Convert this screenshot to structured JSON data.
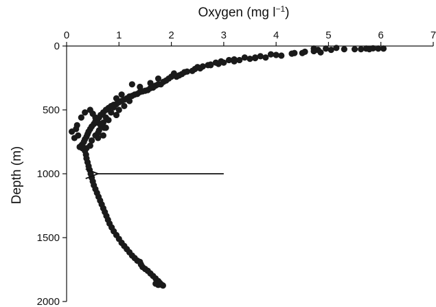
{
  "chart_data": {
    "type": "scatter",
    "title": "",
    "xlabel_main": "Oxygen (mg l",
    "xlabel_sup": "−1",
    "xlabel_close": ")",
    "ylabel": "Depth (m)",
    "xlim": [
      0,
      7
    ],
    "ylim": [
      0,
      2000
    ],
    "y_reversed": true,
    "x_axis_position": "top",
    "x_ticks": [
      "0",
      "1",
      "2",
      "3",
      "4",
      "5",
      "6",
      "7"
    ],
    "y_ticks": [
      "0",
      "500",
      "1000",
      "1500",
      "2000"
    ],
    "grid": false,
    "legend": "none",
    "marker_color": "#1a1a1a",
    "annotation": {
      "type": "arrow",
      "from": {
        "x": 3.0,
        "y": 1000
      },
      "to": {
        "x": 0.6,
        "y": 1000
      }
    },
    "series": [
      {
        "points": [
          [
            6.05,
            20
          ],
          [
            5.95,
            20
          ],
          [
            5.85,
            18
          ],
          [
            5.78,
            25
          ],
          [
            5.72,
            20
          ],
          [
            5.62,
            25
          ],
          [
            5.5,
            25
          ],
          [
            5.3,
            25
          ],
          [
            5.15,
            15
          ],
          [
            5.05,
            30
          ],
          [
            4.95,
            20
          ],
          [
            4.85,
            50
          ],
          [
            4.8,
            30
          ],
          [
            4.72,
            20
          ],
          [
            4.5,
            55
          ],
          [
            4.3,
            60
          ],
          [
            4.1,
            75
          ],
          [
            4.0,
            70
          ],
          [
            3.9,
            65
          ],
          [
            3.8,
            90
          ],
          [
            3.7,
            80
          ],
          [
            3.6,
            95
          ],
          [
            3.5,
            100
          ],
          [
            3.4,
            90
          ],
          [
            3.3,
            110
          ],
          [
            3.2,
            120
          ],
          [
            3.1,
            110
          ],
          [
            3.0,
            130
          ],
          [
            2.95,
            120
          ],
          [
            2.9,
            140
          ],
          [
            2.85,
            130
          ],
          [
            2.75,
            150
          ],
          [
            2.7,
            150
          ],
          [
            2.6,
            160
          ],
          [
            2.55,
            175
          ],
          [
            2.45,
            180
          ],
          [
            2.4,
            195
          ],
          [
            2.3,
            200
          ],
          [
            2.25,
            205
          ],
          [
            2.2,
            220
          ],
          [
            2.15,
            230
          ],
          [
            2.1,
            240
          ],
          [
            2.0,
            240
          ],
          [
            1.95,
            255
          ],
          [
            1.9,
            270
          ],
          [
            1.85,
            280
          ],
          [
            1.8,
            300
          ],
          [
            1.75,
            300
          ],
          [
            1.7,
            310
          ],
          [
            1.65,
            325
          ],
          [
            1.6,
            330
          ],
          [
            1.55,
            345
          ],
          [
            1.5,
            350
          ],
          [
            1.45,
            355
          ],
          [
            1.4,
            360
          ],
          [
            1.35,
            375
          ],
          [
            1.3,
            380
          ],
          [
            1.25,
            390
          ],
          [
            1.2,
            395
          ],
          [
            1.15,
            410
          ],
          [
            1.1,
            420
          ],
          [
            1.05,
            430
          ],
          [
            1.0,
            440
          ],
          [
            0.95,
            455
          ],
          [
            0.9,
            460
          ],
          [
            0.85,
            470
          ],
          [
            0.8,
            485
          ],
          [
            0.75,
            500
          ],
          [
            0.7,
            520
          ],
          [
            0.65,
            540
          ],
          [
            0.62,
            560
          ],
          [
            0.58,
            580
          ],
          [
            0.55,
            590
          ],
          [
            0.52,
            610
          ],
          [
            0.48,
            630
          ],
          [
            0.45,
            650
          ],
          [
            0.42,
            670
          ],
          [
            0.4,
            690
          ],
          [
            0.38,
            710
          ],
          [
            0.35,
            730
          ],
          [
            0.33,
            750
          ],
          [
            0.3,
            770
          ],
          [
            0.28,
            780
          ],
          [
            1.05,
            380
          ],
          [
            0.95,
            410
          ],
          [
            0.9,
            480
          ],
          [
            0.85,
            520
          ],
          [
            0.75,
            560
          ],
          [
            0.7,
            600
          ],
          [
            0.72,
            640
          ],
          [
            0.7,
            700
          ],
          [
            0.6,
            720
          ],
          [
            0.2,
            620
          ],
          [
            0.18,
            650
          ],
          [
            0.1,
            670
          ],
          [
            0.22,
            700
          ],
          [
            0.15,
            720
          ],
          [
            0.28,
            560
          ],
          [
            0.35,
            520
          ],
          [
            0.45,
            500
          ],
          [
            0.5,
            530
          ],
          [
            0.55,
            560
          ],
          [
            0.6,
            600
          ],
          [
            0.65,
            620
          ],
          [
            0.62,
            660
          ],
          [
            0.55,
            700
          ],
          [
            0.48,
            740
          ],
          [
            0.45,
            780
          ],
          [
            0.38,
            800
          ],
          [
            0.3,
            800
          ],
          [
            0.25,
            790
          ],
          [
            1.25,
            300
          ],
          [
            1.4,
            320
          ],
          [
            1.6,
            290
          ],
          [
            1.75,
            255
          ],
          [
            2.05,
            215
          ],
          [
            2.5,
            165
          ],
          [
            2.75,
            145
          ],
          [
            3.2,
            105
          ],
          [
            3.6,
            90
          ],
          [
            4.35,
            55
          ],
          [
            4.55,
            45
          ],
          [
            4.72,
            40
          ],
          [
            1.2,
            430
          ],
          [
            1.1,
            470
          ],
          [
            1.0,
            500
          ],
          [
            0.95,
            540
          ],
          [
            0.8,
            580
          ],
          [
            0.75,
            640
          ],
          [
            0.6,
            680
          ],
          [
            0.35,
            820
          ],
          [
            0.37,
            850
          ],
          [
            0.38,
            880
          ],
          [
            0.4,
            910
          ],
          [
            0.42,
            940
          ],
          [
            0.44,
            970
          ],
          [
            0.46,
            1000
          ],
          [
            0.48,
            1030
          ],
          [
            0.5,
            1060
          ],
          [
            0.52,
            1090
          ],
          [
            0.55,
            1120
          ],
          [
            0.58,
            1150
          ],
          [
            0.61,
            1180
          ],
          [
            0.64,
            1210
          ],
          [
            0.67,
            1240
          ],
          [
            0.7,
            1270
          ],
          [
            0.73,
            1300
          ],
          [
            0.76,
            1330
          ],
          [
            0.79,
            1360
          ],
          [
            0.82,
            1390
          ],
          [
            0.86,
            1420
          ],
          [
            0.9,
            1450
          ],
          [
            0.95,
            1480
          ],
          [
            1.0,
            1510
          ],
          [
            1.05,
            1540
          ],
          [
            1.1,
            1565
          ],
          [
            1.15,
            1590
          ],
          [
            1.2,
            1615
          ],
          [
            1.25,
            1640
          ],
          [
            1.3,
            1660
          ],
          [
            1.35,
            1680
          ],
          [
            1.4,
            1690
          ],
          [
            1.42,
            1710
          ],
          [
            1.45,
            1730
          ],
          [
            1.5,
            1745
          ],
          [
            1.55,
            1760
          ],
          [
            1.6,
            1780
          ],
          [
            1.65,
            1800
          ],
          [
            1.7,
            1820
          ],
          [
            1.75,
            1840
          ],
          [
            1.78,
            1855
          ],
          [
            1.8,
            1865
          ],
          [
            1.82,
            1870
          ],
          [
            1.84,
            1875
          ],
          [
            1.75,
            1870
          ],
          [
            1.7,
            1860
          ]
        ]
      }
    ]
  }
}
